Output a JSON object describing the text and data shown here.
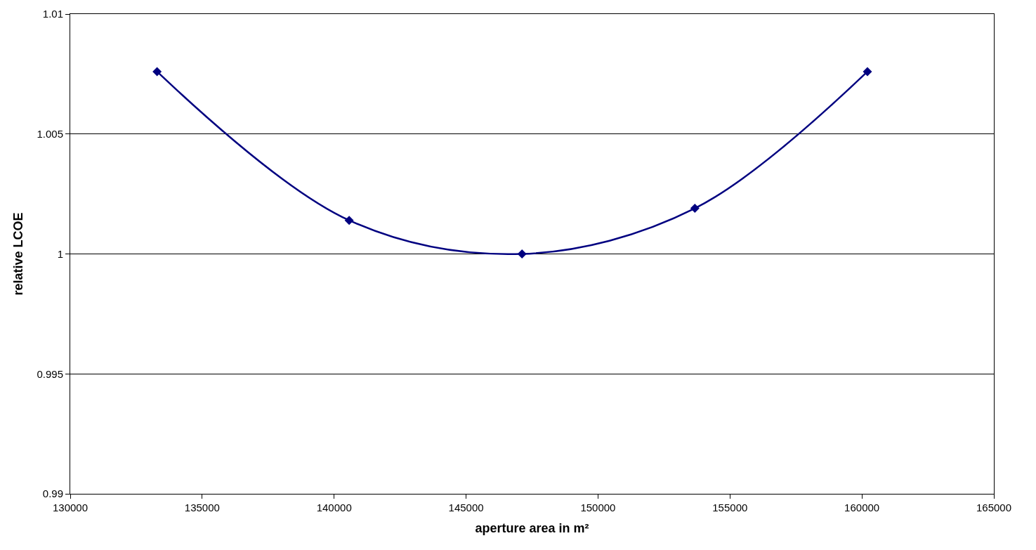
{
  "chart_data": {
    "type": "line",
    "xlabel": "aperture area in m²",
    "ylabel": "relative LCOE",
    "x": [
      133290,
      140570,
      147120,
      153670,
      160210
    ],
    "series": [
      {
        "color": "#000080",
        "values": [
          1.0076,
          1.0014,
          1.0,
          1.0019,
          1.0076
        ]
      }
    ],
    "xlim": [
      130000,
      165000
    ],
    "xticks": [
      130000,
      135000,
      140000,
      145000,
      150000,
      155000,
      160000,
      165000
    ],
    "ylim": [
      0.99,
      1.01
    ],
    "yticks": [
      0.99,
      0.995,
      1,
      1.005,
      1.01
    ],
    "grid": "y",
    "marker": "diamond",
    "line_style": "solid"
  }
}
